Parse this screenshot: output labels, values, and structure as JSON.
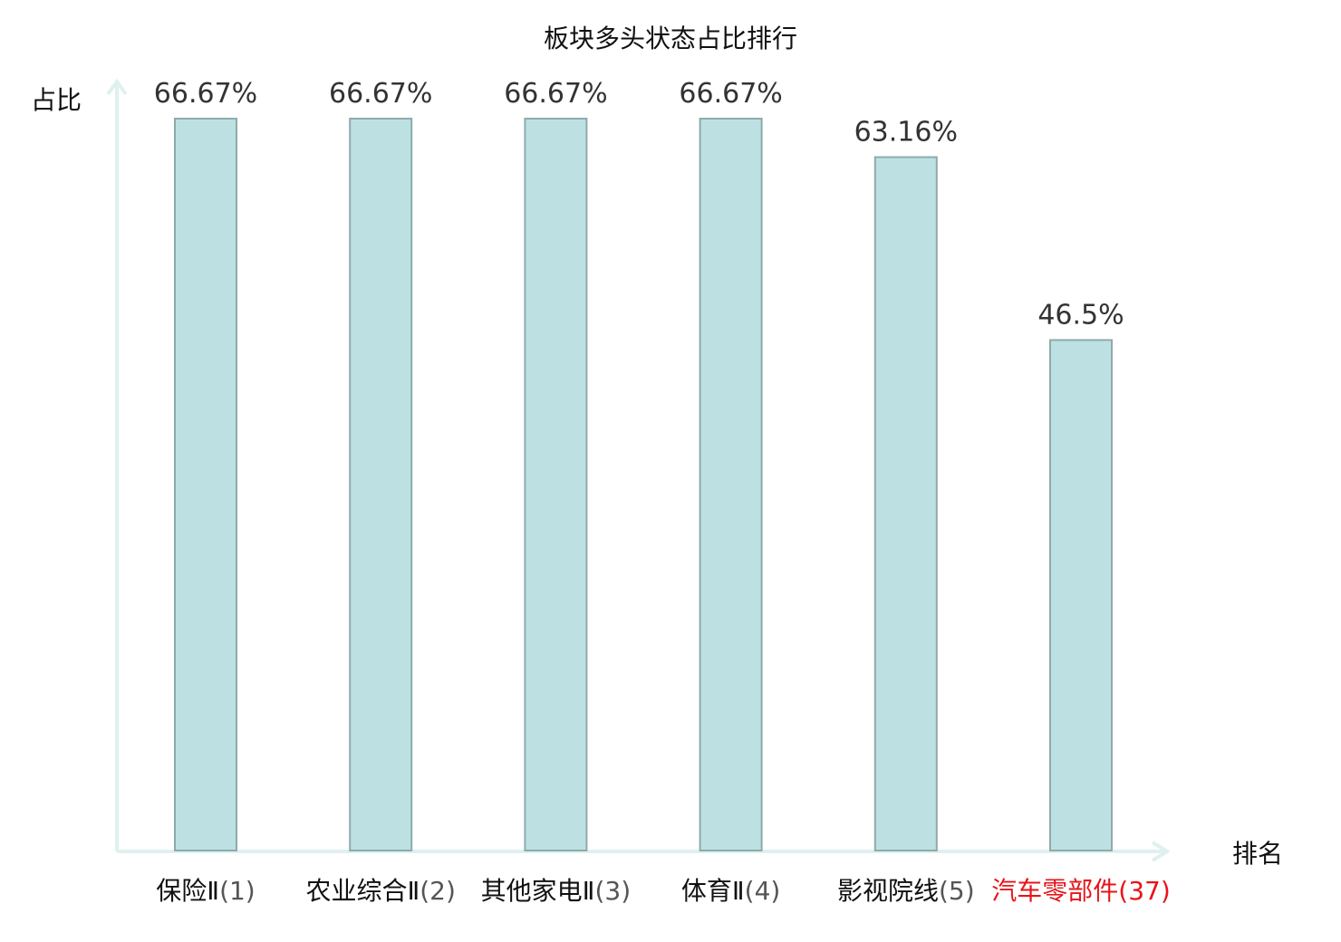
{
  "chart_data": {
    "type": "bar",
    "title": "板块多头状态占比排行",
    "ylabel": "占比",
    "xlabel": "排名",
    "ylim": [
      0,
      70
    ],
    "categories": [
      {
        "name": "保险Ⅱ",
        "rank": "(1)",
        "highlight": false
      },
      {
        "name": "农业综合Ⅱ",
        "rank": "(2)",
        "highlight": false
      },
      {
        "name": "其他家电Ⅱ",
        "rank": "(3)",
        "highlight": false
      },
      {
        "name": "体育Ⅱ",
        "rank": "(4)",
        "highlight": false
      },
      {
        "name": "影视院线",
        "rank": "(5)",
        "highlight": false
      },
      {
        "name": "汽车零部件",
        "rank": "(37)",
        "highlight": true
      }
    ],
    "values": [
      66.67,
      66.67,
      66.67,
      66.67,
      63.16,
      46.5
    ],
    "value_labels": [
      "66.67%",
      "66.67%",
      "66.67%",
      "66.67%",
      "63.16%",
      "46.5%"
    ],
    "grid": false,
    "legend": "none",
    "colors": {
      "bar_fill": "#bde1e3",
      "bar_stroke": "#8faaab",
      "axis": "#dff1ef",
      "highlight": "#e8141a"
    }
  }
}
